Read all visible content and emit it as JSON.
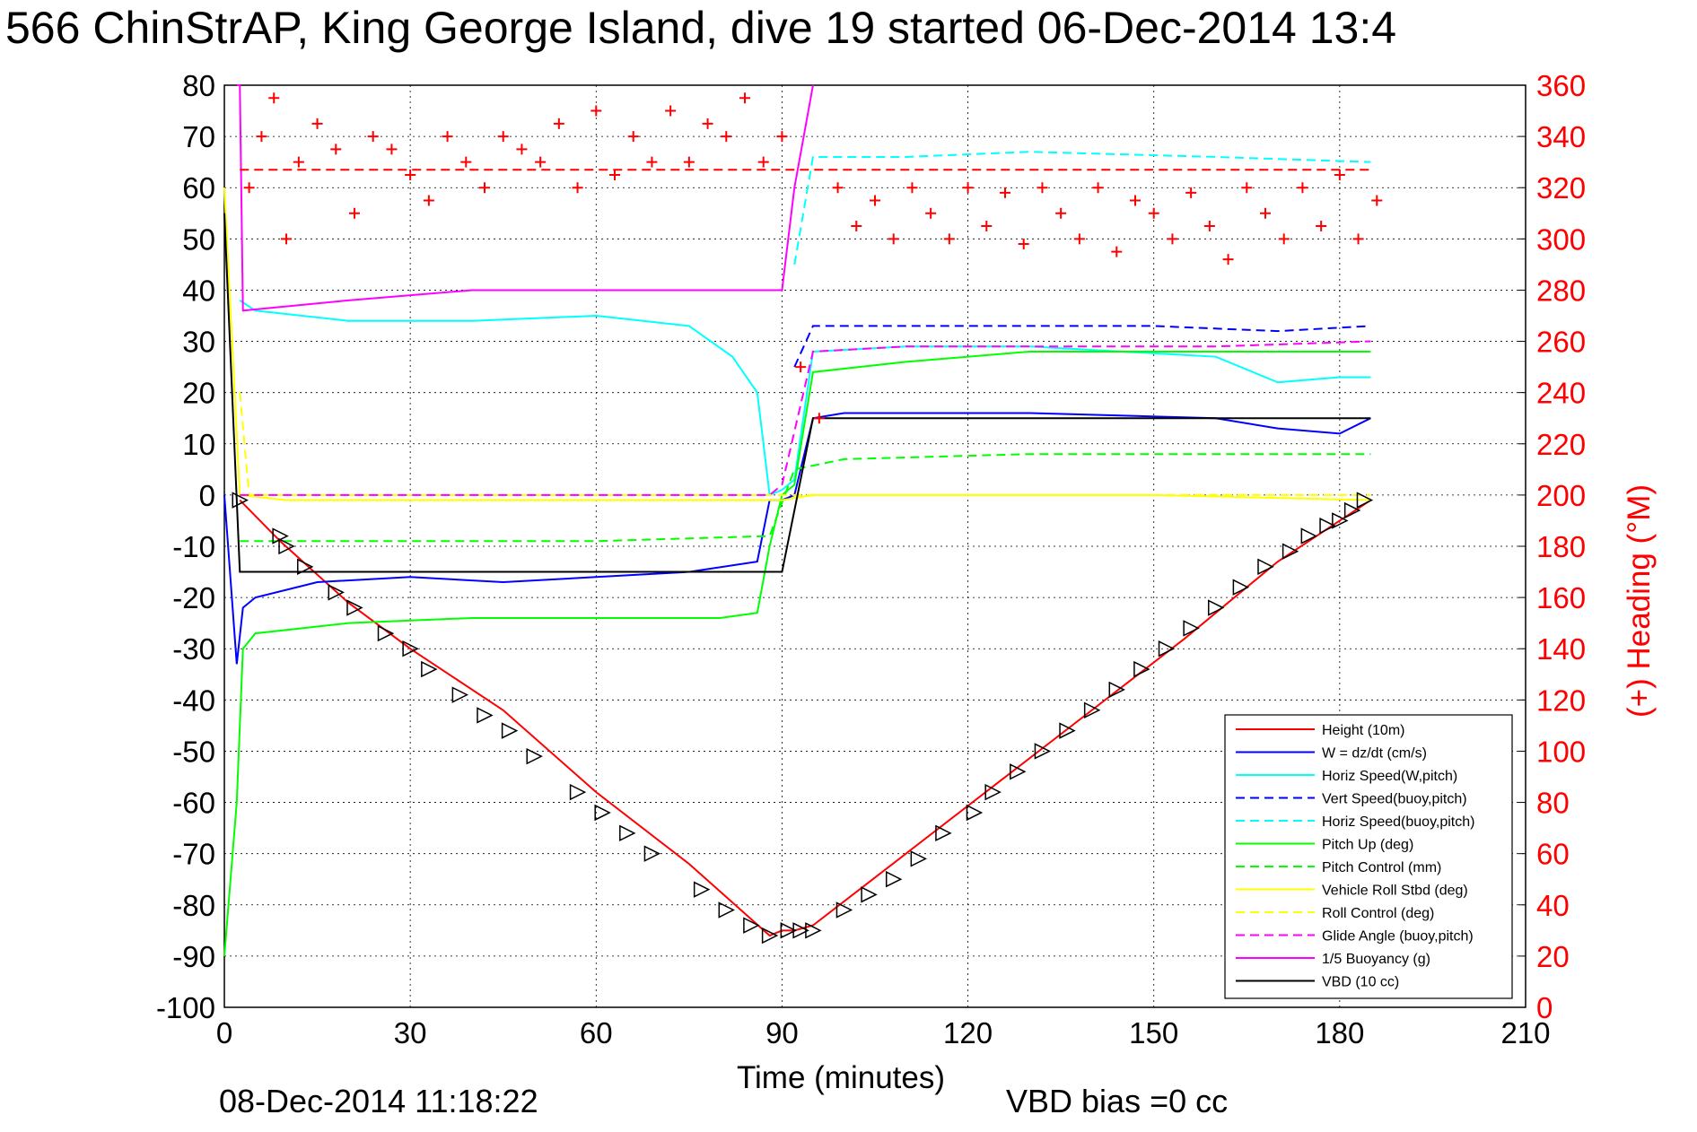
{
  "chart_data": {
    "type": "line",
    "title": "566 ChinStrAP, King George Island, dive 19 started 06-Dec-2014 13:4",
    "xlabel": "Time (minutes)",
    "ylabel_right": "(+) Heading (°M)",
    "xlim": [
      0,
      210
    ],
    "ylim": [
      -100,
      80
    ],
    "ylim_right": [
      0,
      360
    ],
    "x_ticks": [
      "0",
      "30",
      "60",
      "90",
      "120",
      "150",
      "180",
      "210"
    ],
    "y_ticks": [
      "80",
      "70",
      "60",
      "50",
      "40",
      "30",
      "20",
      "10",
      "0",
      "-10",
      "-20",
      "-30",
      "-40",
      "-50",
      "-60",
      "-70",
      "-80",
      "-90",
      "-100"
    ],
    "y_ticks_right": [
      "360",
      "340",
      "320",
      "300",
      "280",
      "260",
      "240",
      "220",
      "200",
      "180",
      "160",
      "140",
      "120",
      "100",
      "80",
      "60",
      "40",
      "20",
      "0"
    ],
    "grid": true,
    "legend_position": "bottom-right",
    "footer_left": "08-Dec-2014 11:18:22",
    "footer_right": "VBD bias =0 cc",
    "series": [
      {
        "name": "Height (10m)",
        "color": "#ff0000",
        "style": "solid",
        "x": [
          2.5,
          9,
          20,
          30,
          45,
          60,
          75,
          88,
          90,
          92,
          95,
          110,
          125,
          140,
          155,
          170,
          185
        ],
        "y": [
          -1,
          -9,
          -21,
          -30,
          -42,
          -58,
          -72,
          -86,
          -85,
          -85,
          -84,
          -70,
          -56,
          -42,
          -28,
          -13,
          -1
        ]
      },
      {
        "name": "W = dz/dt (cm/s)",
        "color": "#0000ff",
        "style": "solid",
        "x": [
          0,
          2,
          3,
          5,
          15,
          30,
          45,
          60,
          75,
          86,
          88,
          90,
          92,
          95,
          100,
          130,
          160,
          170,
          180,
          185
        ],
        "y": [
          0,
          -33,
          -22,
          -20,
          -17,
          -16,
          -17,
          -16,
          -15,
          -13,
          -1,
          -1,
          0,
          15,
          16,
          16,
          15,
          13,
          12,
          15
        ]
      },
      {
        "name": "Horiz Speed(W,pitch)",
        "color": "#00ffff",
        "style": "solid",
        "x": [
          2.5,
          5,
          20,
          40,
          60,
          75,
          82,
          86,
          88,
          90,
          92,
          95,
          110,
          130,
          160,
          170,
          180,
          185
        ],
        "y": [
          38,
          36,
          34,
          34,
          35,
          33,
          27,
          20,
          0,
          1,
          3,
          28,
          29,
          29,
          27,
          22,
          23,
          23
        ]
      },
      {
        "name": "Vert Speed(buoy,pitch)",
        "color": "#0000ff",
        "style": "dashed",
        "x": [
          92,
          95,
          110,
          130,
          150,
          170,
          185
        ],
        "y": [
          25,
          33,
          33,
          33,
          33,
          32,
          33
        ]
      },
      {
        "name": "Horiz Speed(buoy,pitch)",
        "color": "#00ffff",
        "style": "dashed",
        "x": [
          92,
          95,
          110,
          130,
          160,
          185
        ],
        "y": [
          45,
          66,
          66,
          67,
          66,
          65
        ]
      },
      {
        "name": "Pitch Up (deg)",
        "color": "#00ff00",
        "style": "solid",
        "x": [
          0,
          1,
          2,
          3,
          5,
          20,
          40,
          60,
          80,
          86,
          88,
          90,
          92,
          95,
          110,
          130,
          160,
          185
        ],
        "y": [
          -90,
          -75,
          -60,
          -30,
          -27,
          -25,
          -24,
          -24,
          -24,
          -23,
          -10,
          0,
          2,
          24,
          26,
          28,
          28,
          28
        ]
      },
      {
        "name": "Pitch Control (mm)",
        "color": "#00ff00",
        "style": "dashed",
        "x": [
          2.5,
          10,
          40,
          60,
          88,
          92,
          100,
          130,
          160,
          185
        ],
        "y": [
          -9,
          -9,
          -9,
          -9,
          -8,
          5,
          7,
          8,
          8,
          8
        ]
      },
      {
        "name": "Vehicle Roll Stbd (deg)",
        "color": "#ffff00",
        "style": "solid",
        "x": [
          0,
          2.5,
          10,
          30,
          60,
          90,
          95,
          120,
          150,
          185
        ],
        "y": [
          60,
          0,
          -1,
          -1,
          -1,
          -1,
          0,
          0,
          0,
          -1
        ]
      },
      {
        "name": "Roll Control (deg)",
        "color": "#ffff00",
        "style": "dashed",
        "x": [
          2.5,
          4,
          30,
          60,
          90,
          95,
          120,
          150,
          185
        ],
        "y": [
          20,
          0,
          0,
          0,
          0,
          0,
          0,
          0,
          0
        ]
      },
      {
        "name": "Glide Angle (buoy,pitch)",
        "color": "#ff00ff",
        "style": "dashed",
        "x": [
          2.5,
          20,
          50,
          88,
          90,
          95,
          110,
          130,
          160,
          185
        ],
        "y": [
          0,
          0,
          0,
          0,
          2,
          28,
          29,
          29,
          29,
          30
        ]
      },
      {
        "name": "1/5 Buoyancy (g)",
        "color": "#ff00ff",
        "style": "solid",
        "x": [
          2,
          2.5,
          3,
          20,
          40,
          60,
          80,
          90,
          92,
          95
        ],
        "y": [
          80,
          80,
          36,
          38,
          40,
          40,
          40,
          40,
          60,
          80
        ]
      },
      {
        "name": "VBD (10 cc)",
        "color": "#000000",
        "style": "solid",
        "x": [
          0,
          2.5,
          5,
          30,
          60,
          90,
          95,
          120,
          150,
          185
        ],
        "y": [
          55,
          -15,
          -15,
          -15,
          -15,
          -15,
          15,
          15,
          15,
          15
        ]
      },
      {
        "name": "Heading",
        "color": "#ff0000",
        "style": "markers",
        "axis": "right",
        "x": [
          4,
          6,
          8,
          10,
          12,
          15,
          18,
          21,
          24,
          27,
          30,
          33,
          36,
          39,
          42,
          45,
          48,
          51,
          54,
          57,
          60,
          63,
          66,
          69,
          72,
          75,
          78,
          81,
          84,
          87,
          90,
          93,
          96,
          99,
          102,
          105,
          108,
          111,
          114,
          117,
          120,
          123,
          126,
          129,
          132,
          135,
          138,
          141,
          144,
          147,
          150,
          153,
          156,
          159,
          162,
          165,
          168,
          171,
          174,
          177,
          180,
          183,
          186
        ],
        "y": [
          320,
          340,
          355,
          300,
          330,
          345,
          335,
          310,
          340,
          335,
          325,
          315,
          340,
          330,
          320,
          340,
          335,
          330,
          345,
          320,
          350,
          325,
          340,
          330,
          350,
          330,
          345,
          340,
          355,
          330,
          340,
          250,
          230,
          320,
          305,
          315,
          300,
          320,
          310,
          300,
          320,
          305,
          318,
          298,
          320,
          310,
          300,
          320,
          295,
          315,
          310,
          300,
          318,
          305,
          292,
          320,
          310,
          300,
          320,
          305,
          325,
          300,
          315
        ]
      },
      {
        "name": "Heading reference",
        "color": "#ff0000",
        "style": "dashed",
        "axis": "right",
        "x": [
          2.5,
          185
        ],
        "y": [
          327,
          327
        ]
      },
      {
        "name": "Start/Triangle markers",
        "color": "#000000",
        "style": "triangles",
        "x": [
          2.5,
          9,
          10,
          13,
          18,
          21,
          26,
          30,
          33,
          38,
          42,
          46,
          50,
          57,
          61,
          65,
          69,
          77,
          81,
          85,
          88,
          91,
          93,
          95,
          100,
          104,
          108,
          112,
          116,
          121,
          124,
          128,
          132,
          136,
          140,
          144,
          148,
          152,
          156,
          160,
          164,
          168,
          172,
          175,
          178,
          180,
          182,
          184
        ],
        "y": [
          -1,
          -8,
          -10,
          -14,
          -19,
          -22,
          -27,
          -30,
          -34,
          -39,
          -43,
          -46,
          -51,
          -58,
          -62,
          -66,
          -70,
          -77,
          -81,
          -84,
          -86,
          -85,
          -85,
          -85,
          -81,
          -78,
          -75,
          -71,
          -66,
          -62,
          -58,
          -54,
          -50,
          -46,
          -42,
          -38,
          -34,
          -30,
          -26,
          -22,
          -18,
          -14,
          -11,
          -8,
          -6,
          -5,
          -3,
          -1
        ]
      }
    ]
  }
}
